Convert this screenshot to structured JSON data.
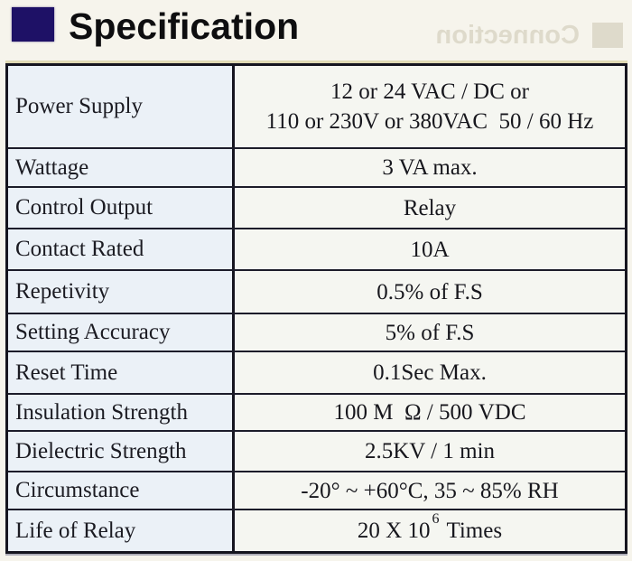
{
  "header": {
    "title": "Specification"
  },
  "ghost": {
    "text": "Connection"
  },
  "colors": {
    "accent_square": "#1e1166",
    "table_border": "#15151f",
    "label_cell_bg": "#ebf1f7",
    "value_cell_bg": "#f5f6f1",
    "page_bg": "#f6f4ec"
  },
  "table": {
    "rows": [
      {
        "label": "Power Supply",
        "value_lines": [
          "12 or 24 VAC / DC or",
          "110 or 230V or 380VAC  50 / 60 Hz"
        ]
      },
      {
        "label": "Wattage",
        "value": "3 VA max."
      },
      {
        "label": "Control Output",
        "value": "Relay"
      },
      {
        "label": "Contact Rated",
        "value": "10A"
      },
      {
        "label": "Repetivity",
        "value": "0.5% of F.S"
      },
      {
        "label": "Setting Accuracy",
        "value": "5% of F.S"
      },
      {
        "label": "Reset Time",
        "value": "0.1Sec Max."
      },
      {
        "label": "Insulation Strength",
        "value": "100 M  Ω / 500 VDC"
      },
      {
        "label": "Dielectric Strength",
        "value": "2.5KV / 1 min"
      },
      {
        "label": "Circumstance",
        "value": "-20° ~ +60°C, 35 ~ 85% RH"
      },
      {
        "label": "Life of Relay",
        "value_base": "20 X 10",
        "value_sup": "6",
        "value_rest": "Times"
      }
    ]
  }
}
